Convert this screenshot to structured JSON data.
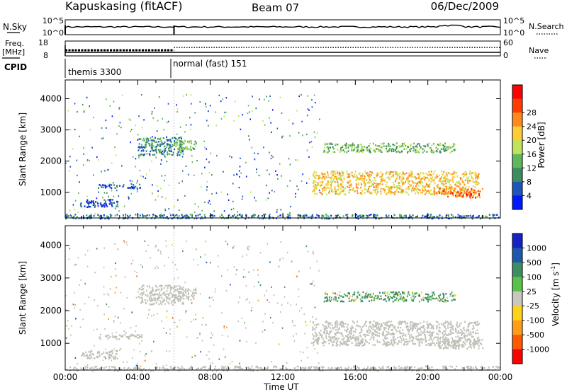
{
  "header": {
    "station": "Kapuskasing (fitACF)",
    "beam": "Beam 07",
    "date": "06/Dec/2009"
  },
  "status_panels": {
    "nsky_label": "N.Sky",
    "nsky_ticks": [
      "10^5",
      "10^0"
    ],
    "nsearch_label": "N.Search",
    "nsearch_ticks": [
      "10^5",
      "10^0"
    ],
    "freq_label_1": "Freq.",
    "freq_label_2": "[MHz]",
    "freq_ticks": [
      "18",
      "8"
    ],
    "nave_label": "Nave",
    "nave_ticks": [
      "60",
      "0"
    ],
    "cpid_label": "CPID",
    "cpid_entries": [
      {
        "label": "themis 3300",
        "start_hour": 0
      },
      {
        "label": "normal (fast) 151",
        "start_hour": 6
      }
    ]
  },
  "x_ticks": [
    "00:00",
    "04:00",
    "08:00",
    "12:00",
    "16:00",
    "20:00",
    "00:00"
  ],
  "x_label": "Time UT",
  "colors": {
    "power_scale": [
      "#0018ff",
      "#1d55b8",
      "#3d8b5e",
      "#5fb85a",
      "#bfe35a",
      "#ffcc33",
      "#ff8a1a",
      "#ff3d00",
      "#ff0000"
    ],
    "velocity_scale": [
      "#1422c8",
      "#1c58ac",
      "#3f8e63",
      "#58c24a",
      "#c8c8c0",
      "#ffd21a",
      "#ff9d1a",
      "#ff5a00",
      "#ff0000"
    ],
    "ground_scatter": "#c0c0b8"
  },
  "chart_data": [
    {
      "type": "heatmap",
      "title": "Power",
      "xlabel": "",
      "ylabel": "Slant Range [km]",
      "x_range_hours": [
        0,
        24
      ],
      "ylim": [
        180,
        4600
      ],
      "y_ticks": [
        1000,
        2000,
        3000,
        4000
      ],
      "colorbar_label": "Power [dB]",
      "colorbar_ticks": [
        "4",
        "8",
        "12",
        "16",
        "20",
        "24",
        "28"
      ],
      "colorbar_range": [
        0,
        32
      ],
      "regions": [
        {
          "t0": 4.0,
          "t1": 6.5,
          "r0": 2200,
          "r1": 2800,
          "level": 10
        },
        {
          "t0": 6.0,
          "t1": 7.2,
          "r0": 2350,
          "r1": 2700,
          "level": 14
        },
        {
          "t0": 1.8,
          "t1": 4.2,
          "r0": 1150,
          "r1": 1300,
          "level": 5
        },
        {
          "t0": 0.8,
          "t1": 2.9,
          "r0": 550,
          "r1": 800,
          "level": 5
        },
        {
          "t0": 13.6,
          "t1": 22.8,
          "r0": 950,
          "r1": 1700,
          "level": 22
        },
        {
          "t0": 14.2,
          "t1": 21.5,
          "r0": 2300,
          "r1": 2600,
          "level": 14
        },
        {
          "t0": 20.5,
          "t1": 23.0,
          "r0": 850,
          "r1": 1150,
          "level": 28
        },
        {
          "t0": 0.0,
          "t1": 24.0,
          "r0": 180,
          "r1": 320,
          "level": 8
        }
      ]
    },
    {
      "type": "heatmap",
      "title": "Velocity",
      "xlabel": "Time UT",
      "ylabel": "Slant Range [km]",
      "x_range_hours": [
        0,
        24
      ],
      "ylim": [
        180,
        4600
      ],
      "y_ticks": [
        1000,
        2000,
        3000,
        4000
      ],
      "colorbar_label": "Velocity [m s-1]",
      "colorbar_ticks": [
        "1000",
        "500",
        "100",
        "25",
        "-25",
        "-100",
        "-500",
        "-1000"
      ],
      "colorbar_range": [
        -1000,
        1000
      ],
      "regions": [
        {
          "t0": 4.0,
          "t1": 6.5,
          "r0": 2200,
          "r1": 2800,
          "level": 0,
          "ground_scatter": true
        },
        {
          "t0": 6.0,
          "t1": 7.2,
          "r0": 2350,
          "r1": 2700,
          "level": 0,
          "ground_scatter": true
        },
        {
          "t0": 1.8,
          "t1": 4.2,
          "r0": 1150,
          "r1": 1300,
          "level": 0,
          "ground_scatter": true
        },
        {
          "t0": 0.8,
          "t1": 2.9,
          "r0": 550,
          "r1": 800,
          "level": 0,
          "ground_scatter": true
        },
        {
          "t0": 13.6,
          "t1": 22.8,
          "r0": 950,
          "r1": 1700,
          "level": 0,
          "ground_scatter": true
        },
        {
          "t0": 14.2,
          "t1": 21.5,
          "r0": 2300,
          "r1": 2600,
          "level": 150
        },
        {
          "t0": 20.5,
          "t1": 23.0,
          "r0": 850,
          "r1": 1150,
          "level": 0,
          "ground_scatter": true
        },
        {
          "t0": 0.0,
          "t1": 24.0,
          "r0": 180,
          "r1": 320,
          "level": 0,
          "ground_scatter": true
        }
      ]
    }
  ]
}
